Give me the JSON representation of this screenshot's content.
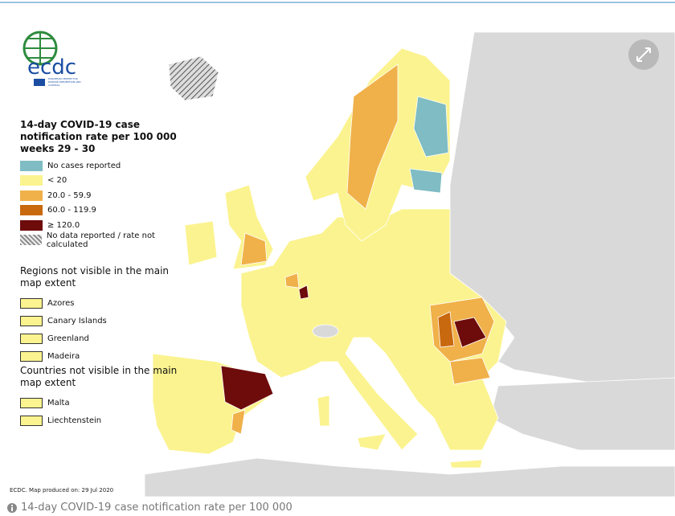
{
  "logo": {
    "name": "ecdc",
    "subtitle": "EUROPEAN CENTRE FOR DISEASE PREVENTION AND CONTROL"
  },
  "legend": {
    "title": "14-day COVID-19 case notification rate per 100 000 weeks 29 - 30",
    "items": [
      {
        "label": "No cases reported",
        "color": "#7fbcc3"
      },
      {
        "label": "< 20",
        "color": "#fbf38f"
      },
      {
        "label": "20.0 - 59.9",
        "color": "#f0b14a"
      },
      {
        "label": "60.0 - 119.9",
        "color": "#c9690f"
      },
      {
        "label": "≥ 120.0",
        "color": "#6e0b0b"
      },
      {
        "label": "No data reported / rate not calculated",
        "color": "#8c8c8c",
        "pattern": "hatched"
      }
    ]
  },
  "regions_not_visible": {
    "title": "Regions not visible in the main map extent",
    "items": [
      "Azores",
      "Canary Islands",
      "Greenland",
      "Madeira"
    ]
  },
  "countries_not_visible": {
    "title": "Countries not visible in the main map extent",
    "items": [
      "Malta",
      "Liechtenstein"
    ]
  },
  "credit": "ECDC. Map produced on: 29 Jul 2020",
  "caption": "14-day COVID-19 case notification rate per 100 000"
}
